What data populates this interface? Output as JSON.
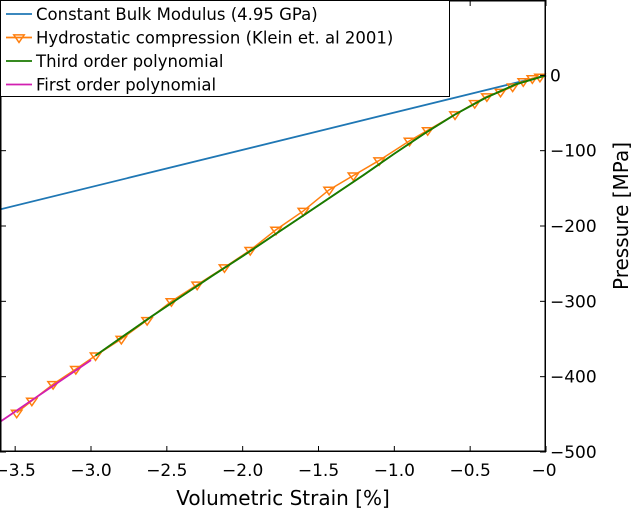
{
  "chart_data": {
    "type": "line",
    "title": "",
    "xlabel": "Volumetric Strain [%]",
    "ylabel": "Pressure [MPa]",
    "xlim": [
      -3.6,
      0
    ],
    "ylim": [
      -500,
      100
    ],
    "x_ticks": [
      -3.5,
      -3.0,
      -2.5,
      -2.0,
      -1.5,
      -1.0,
      -0.5,
      0
    ],
    "x_tick_labels": [
      "−3.5",
      "−3.0",
      "−2.5",
      "−2.0",
      "−1.5",
      "−1.0",
      "−0.5",
      "−0"
    ],
    "y_ticks": [
      0,
      -100,
      -200,
      -300,
      -400,
      -500
    ],
    "y_tick_labels": [
      "0",
      "−100",
      "−200",
      "−300",
      "−400",
      "−500"
    ],
    "y_axis_side": "right",
    "grid": false,
    "legend_position": "top-left",
    "series": [
      {
        "name": "Constant Bulk Modulus (4.95 GPa)",
        "color": "#1f77b4",
        "marker": "none",
        "x": [
          -3.6,
          0
        ],
        "y": [
          -178,
          0
        ]
      },
      {
        "name": "Hydrostatic compression (Klein et. al 2001)",
        "color": "#ff7f0e",
        "marker": "triangle-down",
        "x": [
          -3.49,
          -3.39,
          -3.25,
          -3.1,
          -2.97,
          -2.8,
          -2.63,
          -2.47,
          -2.3,
          -2.12,
          -1.95,
          -1.78,
          -1.6,
          -1.43,
          -1.27,
          -1.1,
          -0.9,
          -0.78,
          -0.6,
          -0.47,
          -0.39,
          -0.3,
          -0.22,
          -0.15,
          -0.09,
          -0.04
        ],
        "y": [
          -448,
          -432,
          -410,
          -390,
          -372,
          -350,
          -325,
          -300,
          -278,
          -255,
          -232,
          -205,
          -180,
          -152,
          -133,
          -113,
          -87,
          -73,
          -52,
          -37,
          -28,
          -22,
          -15,
          -8,
          -4,
          -2
        ]
      },
      {
        "name": "Third order polynomial",
        "color": "#1a7a00",
        "marker": "none",
        "x": [
          -2.97,
          -2.8,
          -2.6,
          -2.4,
          -2.2,
          -2.0,
          -1.8,
          -1.6,
          -1.4,
          -1.2,
          -1.0,
          -0.8,
          -0.6,
          -0.4,
          -0.2,
          0
        ],
        "y": [
          -372,
          -348,
          -320,
          -293,
          -266,
          -240,
          -213,
          -186,
          -159,
          -132,
          -104,
          -77,
          -52,
          -30,
          -12,
          0
        ]
      },
      {
        "name": "First order polynomial",
        "color": "#d21fb0",
        "marker": "none",
        "x": [
          -3.6,
          -3.0
        ],
        "y": [
          -460,
          -378
        ]
      }
    ]
  }
}
